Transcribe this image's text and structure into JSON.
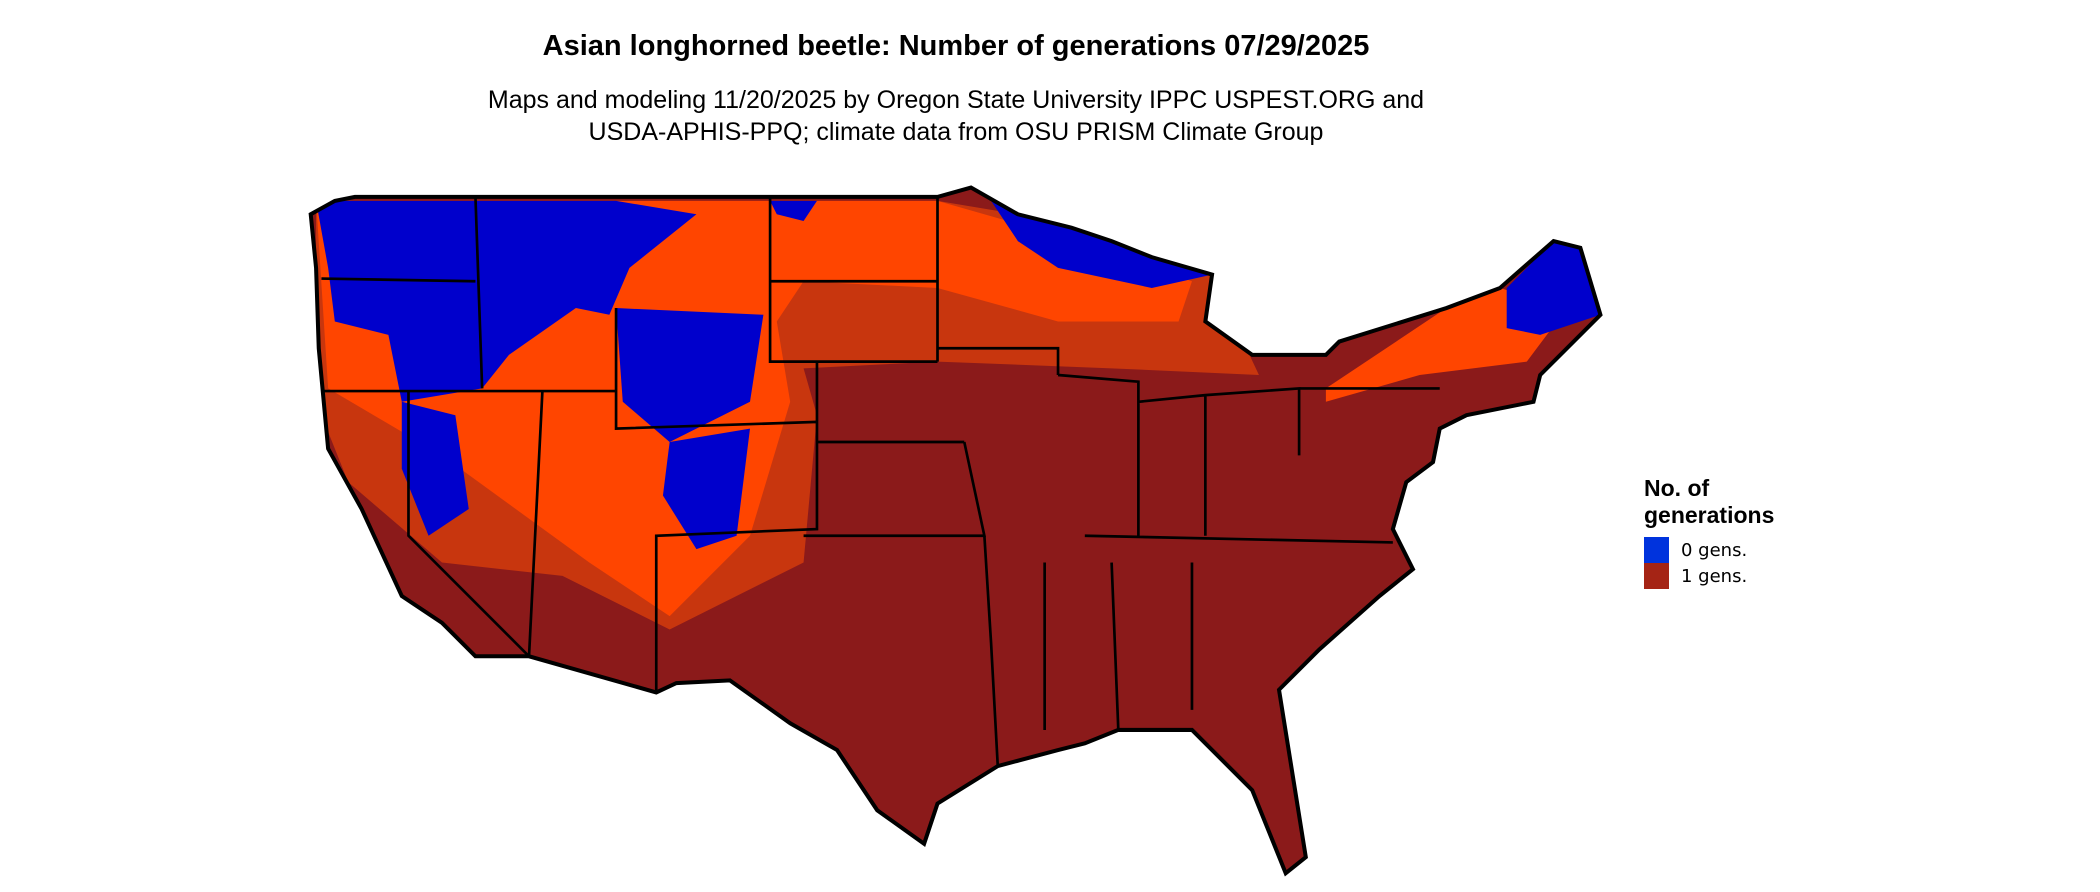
{
  "header": {
    "title": "Asian longhorned beetle: Number of generations 07/29/2025",
    "subtitle_line1": "Maps and modeling 11/20/2025 by Oregon State University IPPC USPEST.ORG and",
    "subtitle_line2": "USDA-APHIS-PPQ; climate data from OSU PRISM Climate Group"
  },
  "map": {
    "region": "Contiguous United States",
    "colors": {
      "zero_gens": "#0000cc",
      "one_gens": "#8b1a1a",
      "transition": "#ff4500",
      "transition_dark": "#c8360e",
      "borders": "#000000"
    }
  },
  "legend": {
    "title_line1": "No. of",
    "title_line2": "generations",
    "items": [
      {
        "label": "0 gens.",
        "color": "#0033dd"
      },
      {
        "label": "1 gens.",
        "color": "#a52415"
      }
    ]
  }
}
